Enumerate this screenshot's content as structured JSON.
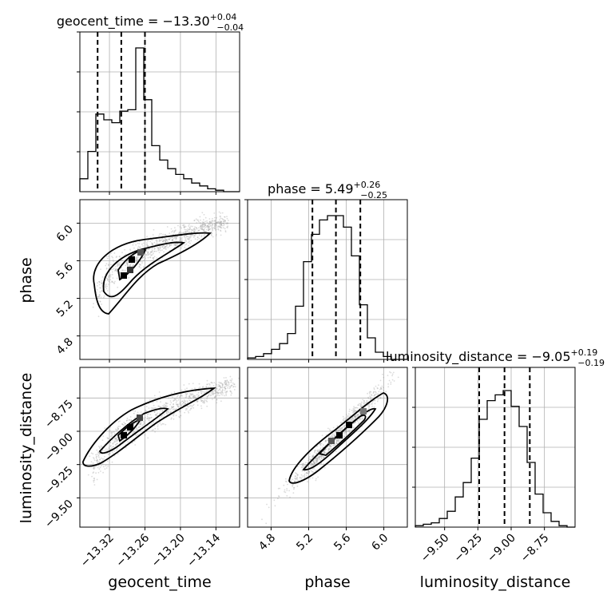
{
  "chart_data": {
    "type": "corner",
    "parameters": [
      "geocent_time",
      "phase",
      "luminosity_distance"
    ],
    "titles": [
      {
        "param": "geocent_time",
        "prefix": "geocent_time = ",
        "median": "−13.30",
        "plus": "+0.04",
        "minus": "−0.04"
      },
      {
        "param": "phase",
        "prefix": "phase = ",
        "median": "5.49",
        "plus": "+0.26",
        "minus": "−0.25"
      },
      {
        "param": "luminosity_distance",
        "prefix": "luminosity_distance = ",
        "median": "−9.05",
        "plus": "+0.19",
        "minus": "−0.19"
      }
    ],
    "ranges": {
      "geocent_time": [
        -13.37,
        -13.1
      ],
      "phase": [
        4.55,
        6.25
      ],
      "luminosity_distance": [
        -9.72,
        -8.52
      ]
    },
    "ticks": {
      "geocent_time": [
        -13.32,
        -13.26,
        -13.2,
        -13.14
      ],
      "phase": [
        4.8,
        5.2,
        5.6,
        6.0
      ],
      "luminosity_distance": [
        -9.5,
        -9.25,
        -9.0,
        -8.75
      ]
    },
    "tick_labels": {
      "geocent_time": [
        "−13.32",
        "−13.26",
        "−13.20",
        "−13.14"
      ],
      "phase": [
        "4.8",
        "5.2",
        "5.6",
        "6.0"
      ],
      "luminosity_distance": [
        "−9.50",
        "−9.25",
        "−9.00",
        "−8.75"
      ]
    },
    "quantiles": {
      "geocent_time": [
        -13.34,
        -13.3,
        -13.26
      ],
      "phase": [
        5.24,
        5.49,
        5.75
      ],
      "luminosity_distance": [
        -9.24,
        -9.05,
        -8.86
      ]
    },
    "histograms": {
      "geocent_time": [
        0.09,
        0.28,
        0.54,
        0.5,
        0.48,
        0.56,
        0.57,
        1.0,
        0.64,
        0.32,
        0.22,
        0.16,
        0.12,
        0.09,
        0.06,
        0.04,
        0.02,
        0.01,
        0.0,
        0.0
      ],
      "phase": [
        0.01,
        0.02,
        0.04,
        0.07,
        0.11,
        0.18,
        0.37,
        0.68,
        0.87,
        0.97,
        1.0,
        1.0,
        0.92,
        0.72,
        0.38,
        0.15,
        0.05,
        0.02,
        0.0,
        0.0
      ],
      "luminosity_distance": [
        0.01,
        0.02,
        0.03,
        0.06,
        0.11,
        0.21,
        0.31,
        0.48,
        0.75,
        0.88,
        0.92,
        0.95,
        0.84,
        0.7,
        0.45,
        0.23,
        0.1,
        0.04,
        0.01,
        0.0
      ]
    },
    "grid": true
  }
}
